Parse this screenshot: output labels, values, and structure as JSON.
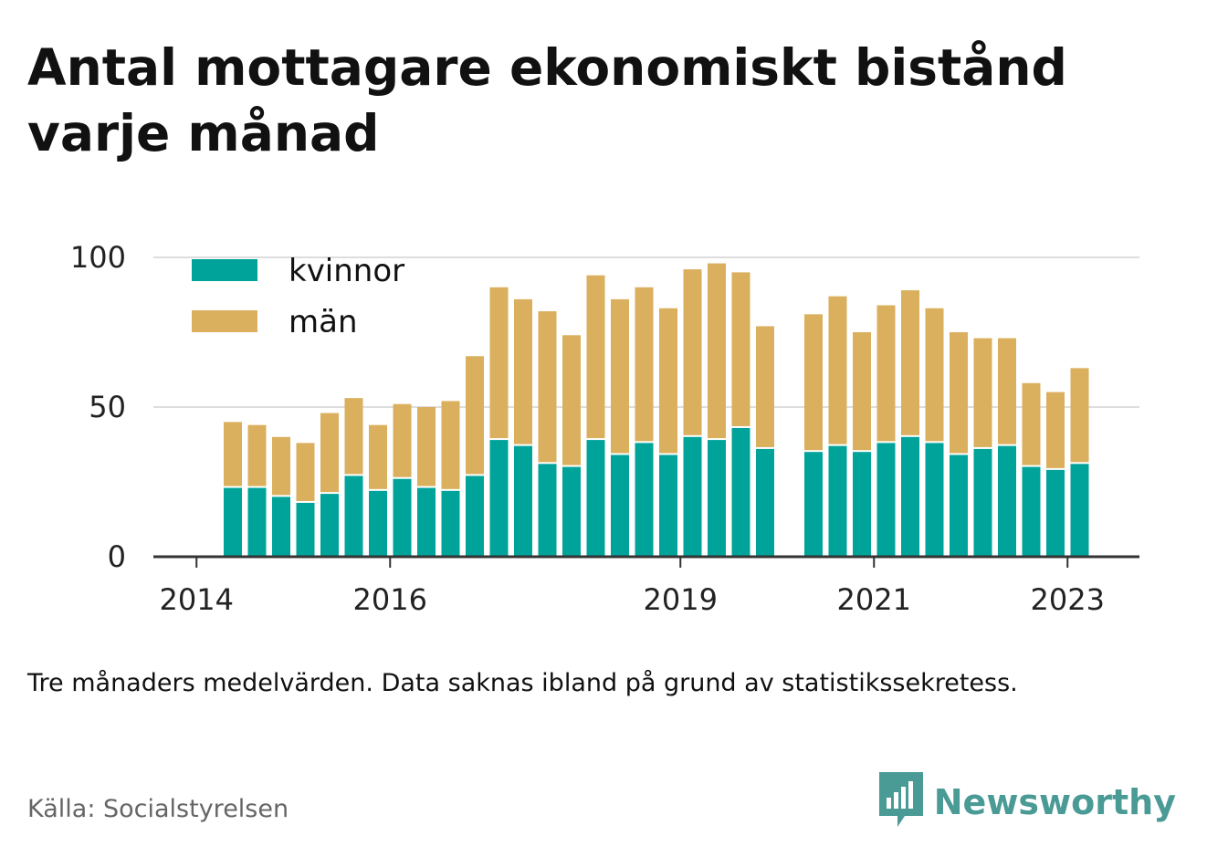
{
  "title": "Antal mottagare ekonomiskt bistånd varje månad",
  "note": "Tre månaders medelvärden. Data saknas ibland på grund av statistikssekretess.",
  "source": "Källa: Socialstyrelsen",
  "brand": "Newsworthy",
  "colors": {
    "kvinnor": "#00a39a",
    "man": "#daaf5d",
    "grid": "#dddddd",
    "axis": "#333333"
  },
  "icons": {
    "brand_logo": "newsworthy-logo-icon"
  },
  "chart_data": {
    "type": "bar",
    "stacked": true,
    "x_ticks": [
      "2014",
      "2016",
      "2019",
      "2021",
      "2023"
    ],
    "y_ticks": [
      "0",
      "50",
      "100"
    ],
    "ylim": [
      0,
      100
    ],
    "grid": true,
    "legend_position": "top-left",
    "categories": [
      "2014-Q2",
      "2014-Q3",
      "2014-Q4",
      "2015-Q1",
      "2015-Q2",
      "2015-Q3",
      "2015-Q4",
      "2016-Q1",
      "2016-Q2",
      "2016-Q3",
      "2016-Q4",
      "2017-Q1",
      "2017-Q2",
      "2017-Q3",
      "2017-Q4",
      "2018-Q1",
      "2018-Q2",
      "2018-Q3",
      "2018-Q4",
      "2019-Q1",
      "2019-Q2",
      "2019-Q3",
      "2019-Q4",
      "2020-Q1",
      "2020-Q2",
      "2020-Q3",
      "2020-Q4",
      "2021-Q1",
      "2021-Q2",
      "2021-Q3",
      "2021-Q4",
      "2022-Q1",
      "2022-Q2",
      "2022-Q3",
      "2022-Q4",
      "2023-Q1"
    ],
    "series": [
      {
        "name": "kvinnor",
        "values": [
          23,
          23,
          20,
          18,
          21,
          27,
          22,
          26,
          23,
          22,
          27,
          39,
          37,
          31,
          30,
          39,
          34,
          38,
          34,
          40,
          39,
          43,
          36,
          null,
          35,
          37,
          35,
          38,
          40,
          38,
          34,
          36,
          37,
          30,
          29,
          31
        ]
      },
      {
        "name": "män",
        "values": [
          22,
          21,
          20,
          20,
          27,
          26,
          22,
          25,
          27,
          30,
          40,
          51,
          49,
          51,
          44,
          55,
          52,
          52,
          49,
          56,
          59,
          52,
          41,
          null,
          46,
          50,
          40,
          46,
          49,
          45,
          41,
          37,
          36,
          28,
          26,
          32
        ]
      }
    ]
  }
}
